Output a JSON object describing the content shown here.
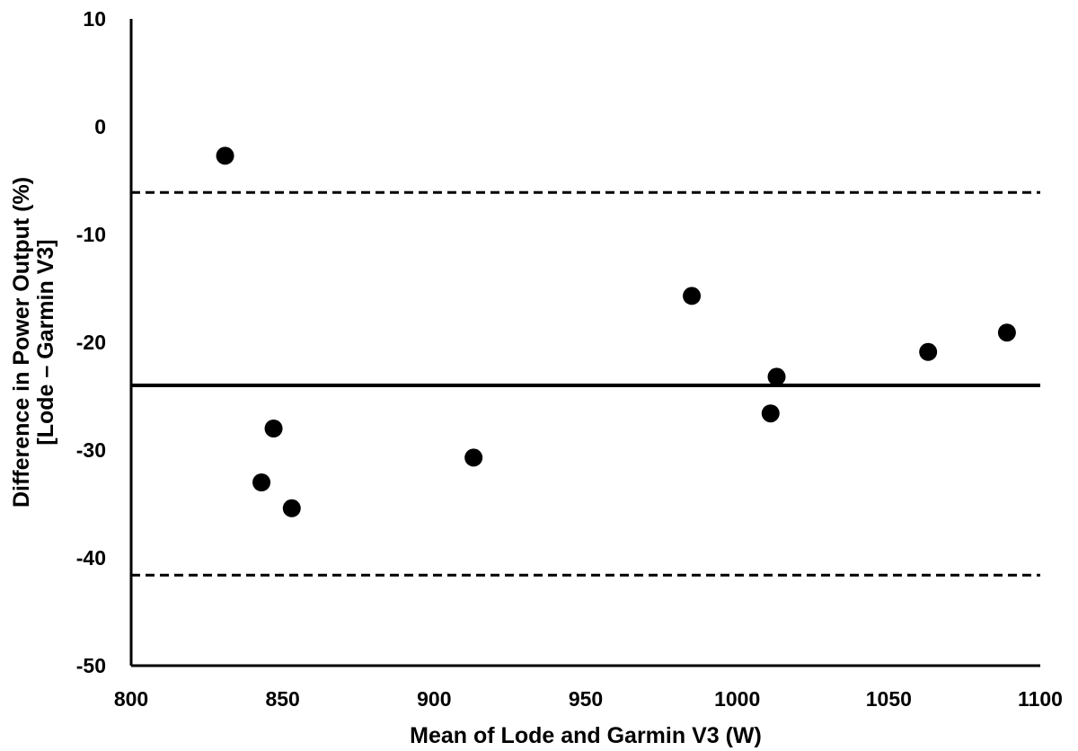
{
  "chart_data": {
    "type": "scatter",
    "xlabel": "Mean of Lode and Garmin V3 (W)",
    "ylabel": [
      "Difference in Power Output (%)",
      "[Lode – Garmin V3]"
    ],
    "xlim": [
      800,
      1100
    ],
    "ylim": [
      -50,
      10
    ],
    "xticks": [
      800,
      850,
      900,
      950,
      1000,
      1050,
      1100
    ],
    "yticks": [
      -50,
      -40,
      -30,
      -20,
      -10,
      0,
      10
    ],
    "grid": false,
    "points": [
      {
        "x": 831,
        "y": -2.7
      },
      {
        "x": 843,
        "y": -33.0
      },
      {
        "x": 847,
        "y": -28.0
      },
      {
        "x": 853,
        "y": -35.4
      },
      {
        "x": 913,
        "y": -30.7
      },
      {
        "x": 985,
        "y": -15.7
      },
      {
        "x": 1011,
        "y": -26.6
      },
      {
        "x": 1013,
        "y": -23.2
      },
      {
        "x": 1063,
        "y": -20.9
      },
      {
        "x": 1089,
        "y": -19.1
      }
    ],
    "reference_lines": [
      {
        "kind": "mean_bias",
        "y": -24.0,
        "style": "solid"
      },
      {
        "kind": "upper_limit_of_agreement",
        "y": -6.1,
        "style": "dashed"
      },
      {
        "kind": "lower_limit_of_agreement",
        "y": -41.6,
        "style": "dashed"
      }
    ]
  }
}
